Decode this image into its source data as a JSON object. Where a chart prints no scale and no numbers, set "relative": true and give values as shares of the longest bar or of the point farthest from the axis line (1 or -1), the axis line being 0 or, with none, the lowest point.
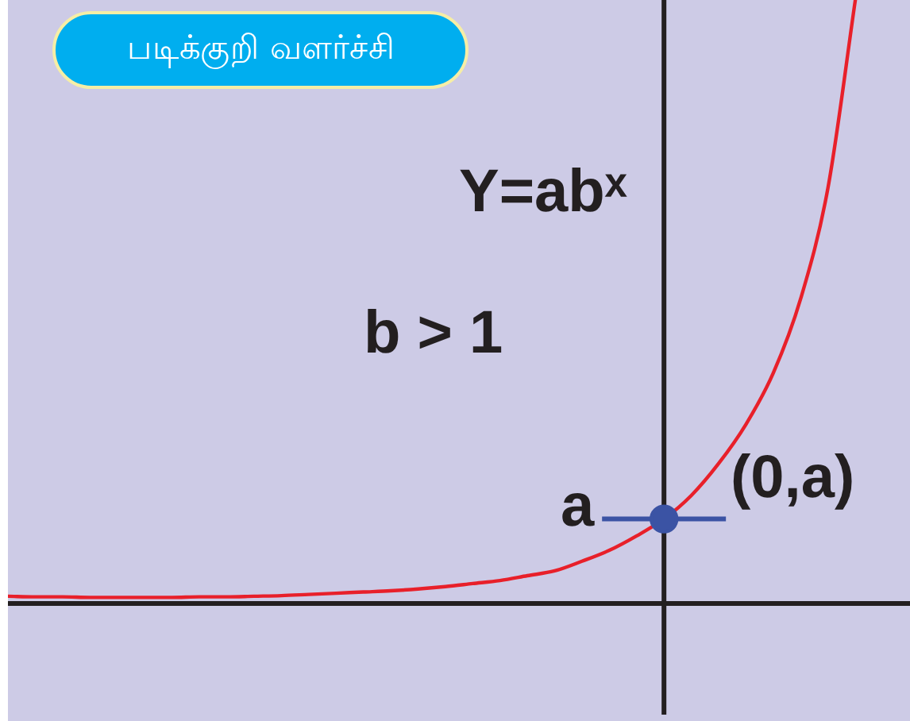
{
  "chart_data": {
    "type": "line",
    "title": "படிக்குறி வளர்ச்சி",
    "relative": true,
    "marker": "none",
    "categories": [
      null,
      null,
      null,
      null,
      null,
      null,
      null,
      null,
      null,
      null,
      null,
      null,
      null,
      null,
      null,
      null,
      null,
      null,
      null,
      null,
      null,
      null,
      null,
      null,
      null,
      null,
      null,
      null,
      null,
      null,
      null,
      null,
      null,
      null
    ],
    "series": [
      {
        "color": "#e8202a",
        "values": [
          0.012,
          0.011,
          0.011,
          0.01,
          0.01,
          0.01,
          0.01,
          0.011,
          0.011,
          0.012,
          0.013,
          0.015,
          0.017,
          0.019,
          0.021,
          0.024,
          0.028,
          0.033,
          0.038,
          0.046,
          0.054,
          0.07,
          0.088,
          0.112,
          0.14,
          0.179,
          0.232,
          0.297,
          0.382,
          0.505,
          0.689,
          1,
          null,
          null
        ]
      },
      {
        "color": "#3b53a4",
        "marker": "circle",
        "values": [
          null,
          null,
          null,
          null,
          null,
          null,
          null,
          null,
          null,
          null,
          null,
          null,
          null,
          null,
          null,
          null,
          null,
          null,
          null,
          null,
          null,
          null,
          null,
          null,
          0.14,
          null,
          null,
          null,
          null,
          null,
          null,
          null,
          null,
          null
        ]
      }
    ],
    "ref_lines": [
      {
        "axis": "y",
        "value": 0.14,
        "label": "a",
        "color": "#3b53a4"
      }
    ],
    "annotations": [
      "Y=abˣ",
      "b > 1",
      "(0,a)"
    ]
  }
}
